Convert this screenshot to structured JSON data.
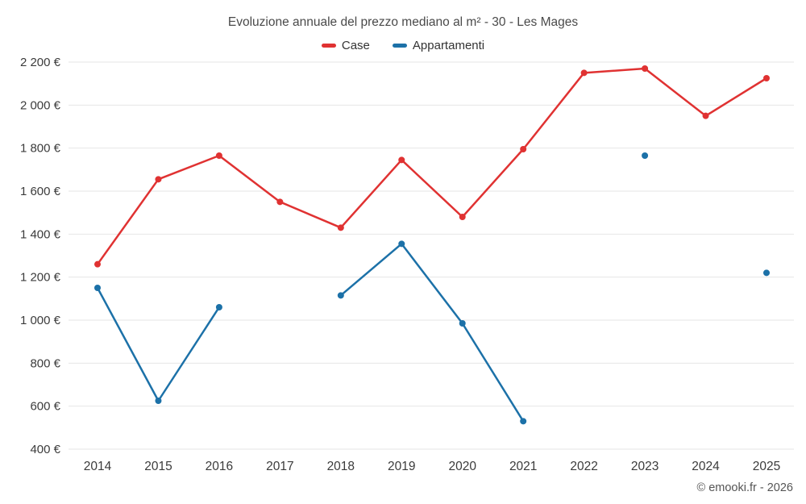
{
  "chart": {
    "title": "Evoluzione annuale del prezzo mediano al m² - 30 - Les Mages",
    "footer": "© emooki.fr - 2026"
  },
  "chart_data": {
    "type": "line",
    "title": "Evoluzione annuale del prezzo mediano al m² - 30 - Les Mages",
    "categories": [
      "2014",
      "2015",
      "2016",
      "2017",
      "2018",
      "2019",
      "2020",
      "2021",
      "2022",
      "2023",
      "2024",
      "2025"
    ],
    "series": [
      {
        "name": "Case",
        "color": "#e03232",
        "values": [
          1260,
          1655,
          1765,
          1550,
          1430,
          1745,
          1480,
          1795,
          2150,
          2170,
          1950,
          2125
        ]
      },
      {
        "name": "Appartamenti",
        "color": "#1c71a8",
        "values": [
          1150,
          625,
          1060,
          null,
          1115,
          1355,
          985,
          530,
          null,
          1765,
          null,
          1220
        ]
      }
    ],
    "ylim": [
      400,
      2200
    ],
    "ytick_step": 200,
    "ytick_labels": [
      "400 €",
      "600 €",
      "800 €",
      "1 000 €",
      "1 200 €",
      "1 400 €",
      "1 600 €",
      "1 800 €",
      "2 000 €",
      "2 200 €"
    ],
    "xlabel": "",
    "ylabel": "",
    "grid": true,
    "legend_position": "top",
    "gridline_color": "#e6e6e6",
    "label_color": "#3b3b3b"
  }
}
